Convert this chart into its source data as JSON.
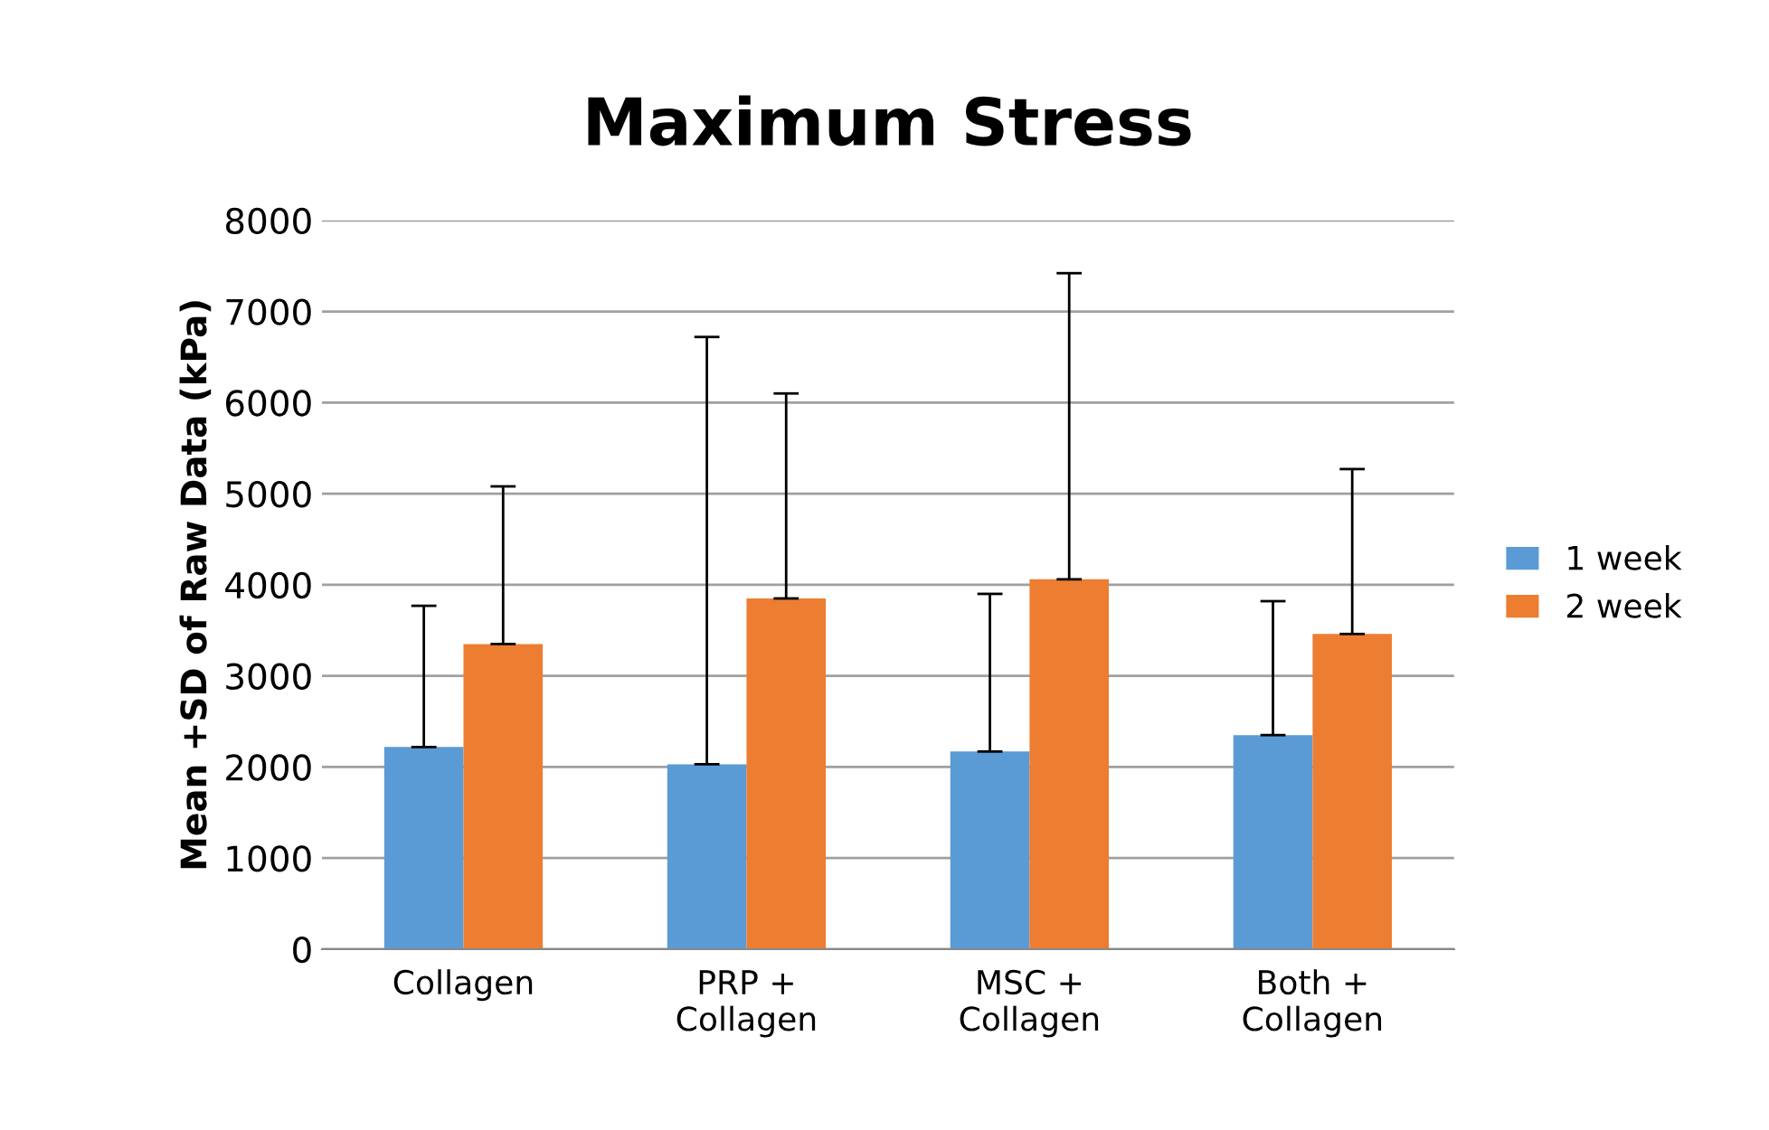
{
  "chart_data": {
    "type": "bar",
    "title": "Maximum Stress",
    "ylabel": "Mean +SD of Raw Data (kPa)",
    "categories": [
      "Collagen",
      "PRP +\nCollagen",
      "MSC +\nCollagen",
      "Both +\nCollagen"
    ],
    "series": [
      {
        "name": "1 week",
        "color": "#5b9bd5",
        "values": [
          2220,
          2030,
          2170,
          2350
        ],
        "errors": [
          [
            2220,
            3770
          ],
          [
            2030,
            6720
          ],
          [
            2170,
            3900
          ],
          [
            2350,
            3820
          ]
        ]
      },
      {
        "name": "2 week",
        "color": "#ed7d31",
        "values": [
          3350,
          3850,
          4060,
          3460
        ],
        "errors": [
          [
            3350,
            5080
          ],
          [
            3850,
            6100
          ],
          [
            4060,
            7420
          ],
          [
            3460,
            5270
          ]
        ]
      }
    ],
    "ylim": [
      0,
      8000
    ],
    "yticks": [
      0,
      1000,
      2000,
      3000,
      4000,
      5000,
      6000,
      7000,
      8000
    ],
    "grid": "y",
    "legend": "right"
  }
}
